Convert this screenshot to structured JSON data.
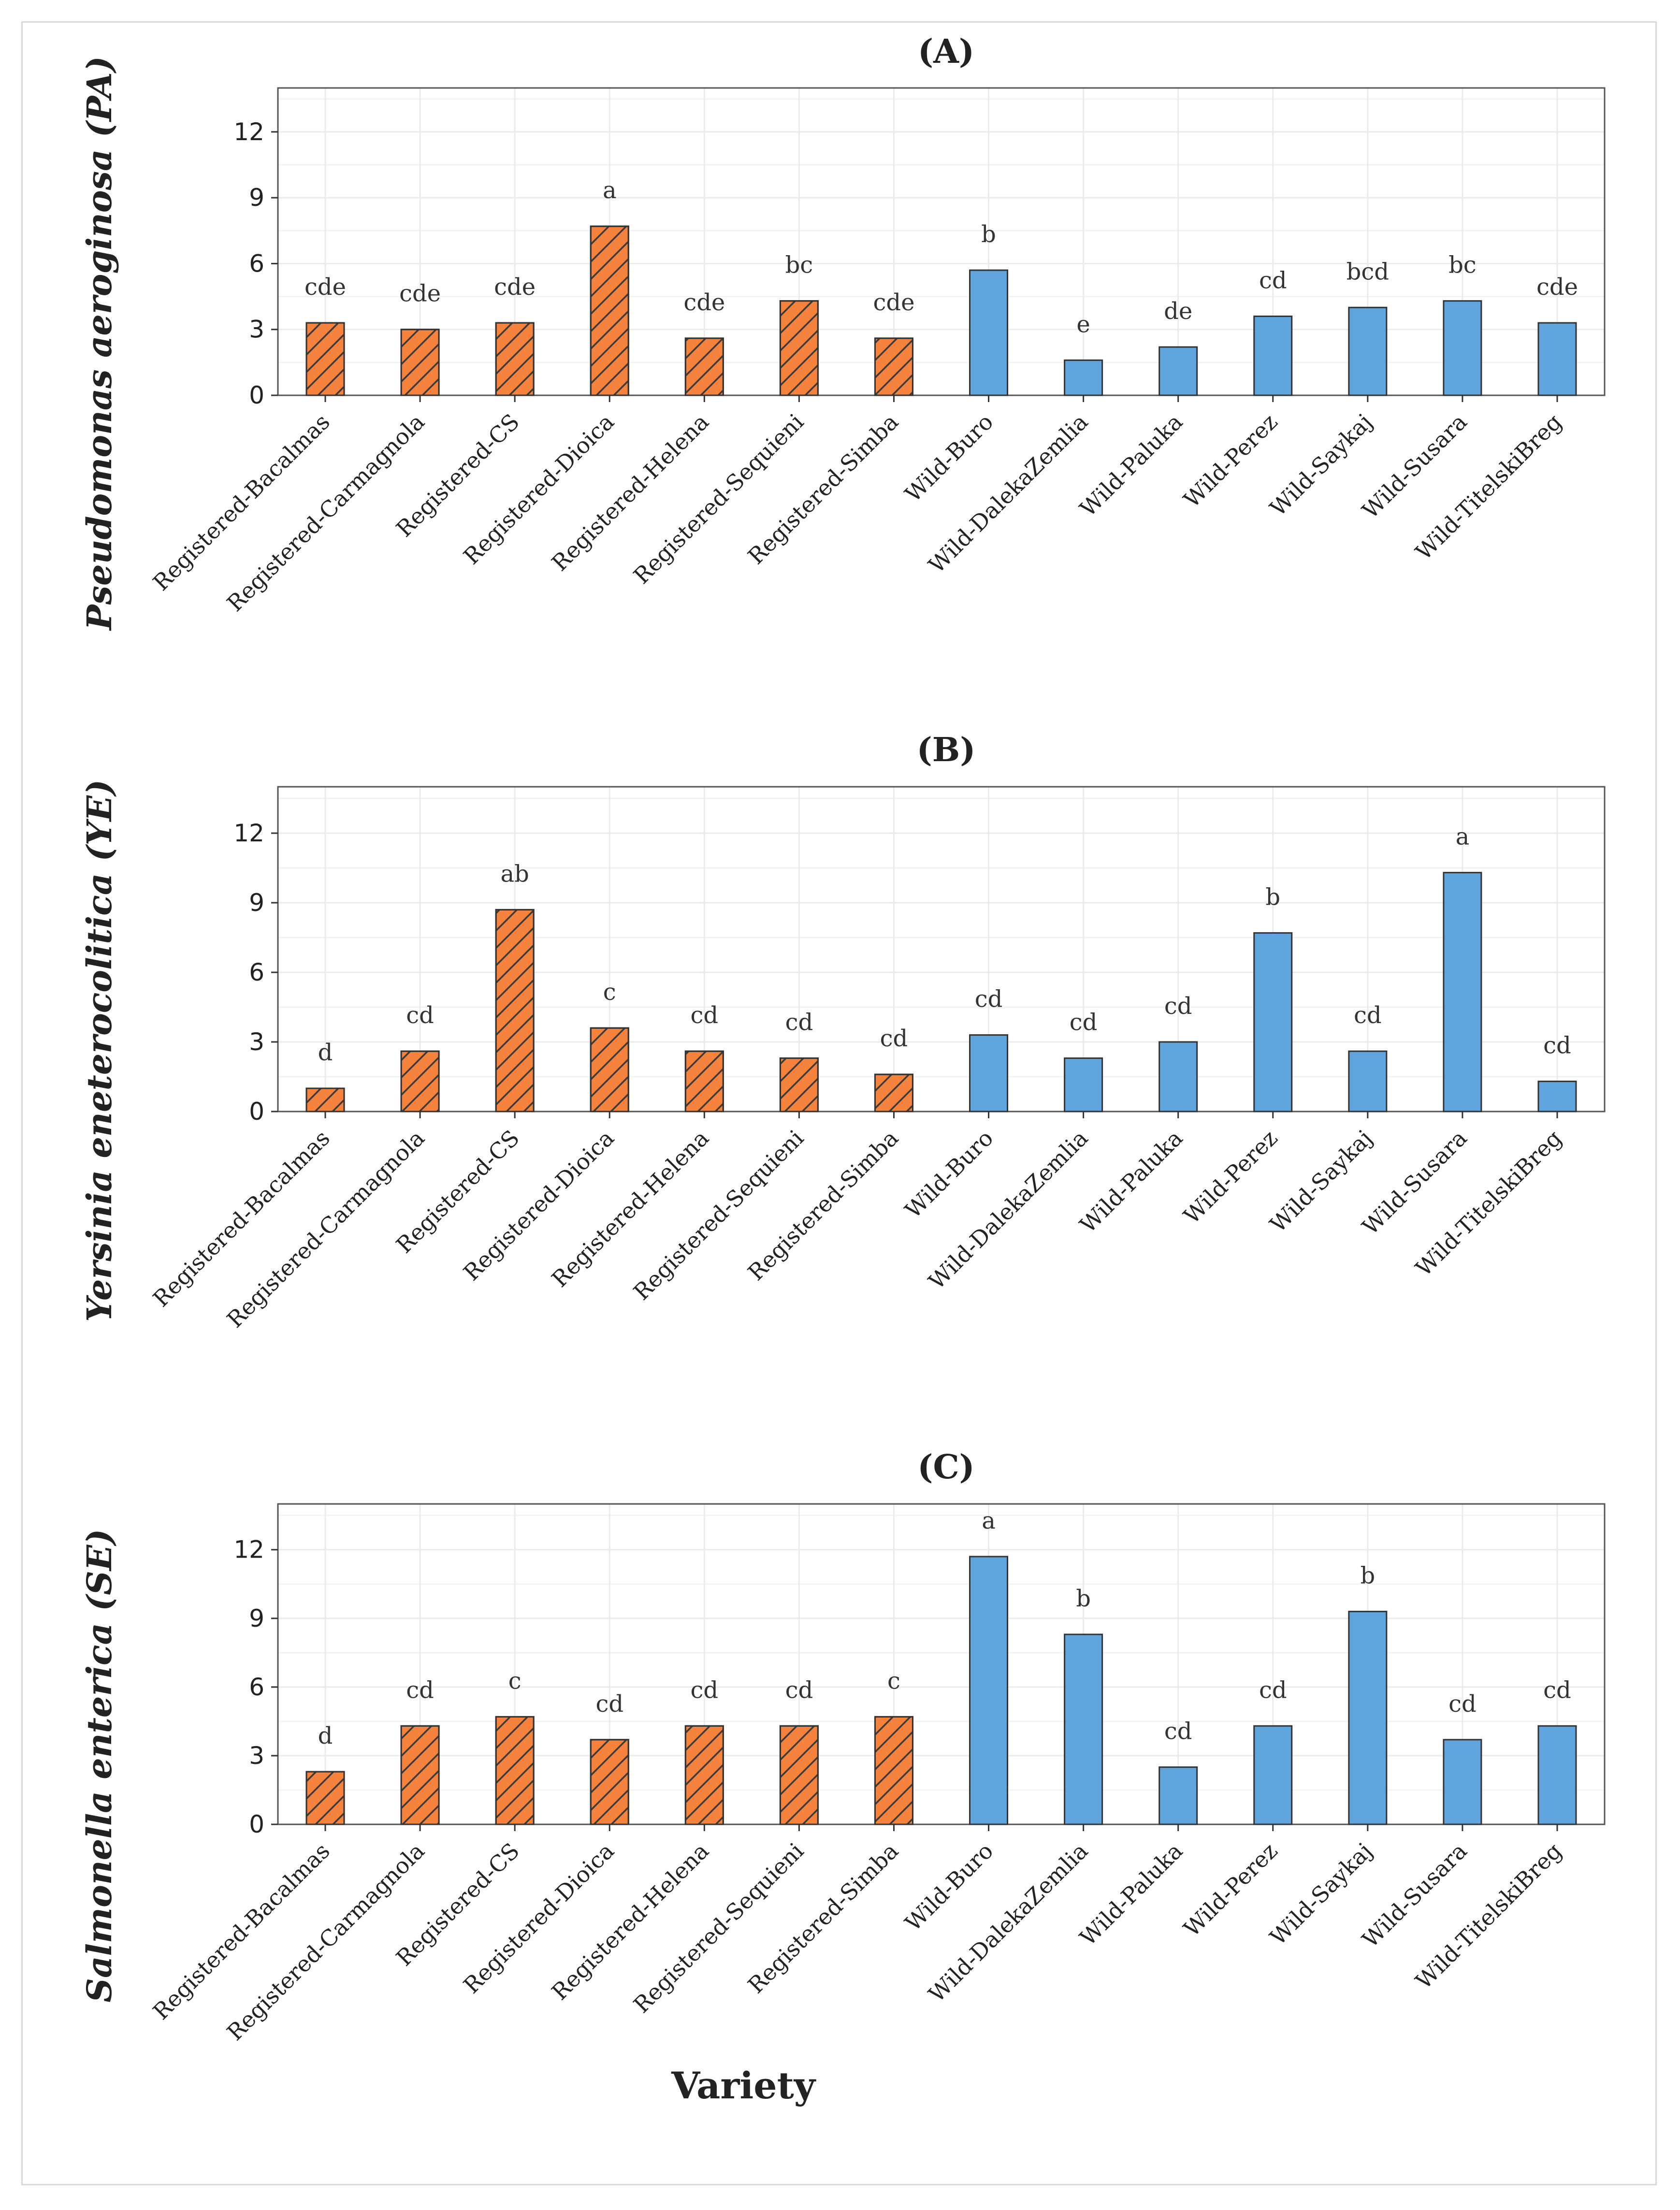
{
  "xlabel": "Variety",
  "colors": {
    "registered": "#F5833D",
    "wild": "#5FA4DD",
    "hatch": "#3a3a3a"
  },
  "chart_data": [
    {
      "type": "bar",
      "title": "(A)",
      "ylabel": "Pseudomonas aeroginosa (PA)",
      "xlabel": "Variety",
      "ylim": [
        0,
        14
      ],
      "yticks": [
        0,
        3,
        6,
        9,
        12
      ],
      "grid": true,
      "categories": [
        "Registered-Bacalmas",
        "Registered-Carmagnola",
        "Registered-CS",
        "Registered-Dioica",
        "Registered-Helena",
        "Registered-Sequieni",
        "Registered-Simba",
        "Wild-Buro",
        "Wild-DalekaZemlia",
        "Wild-Paluka",
        "Wild-Perez",
        "Wild-Saykaj",
        "Wild-Susara",
        "Wild-TitelskiBreg"
      ],
      "groups": [
        "registered",
        "registered",
        "registered",
        "registered",
        "registered",
        "registered",
        "registered",
        "wild",
        "wild",
        "wild",
        "wild",
        "wild",
        "wild",
        "wild"
      ],
      "values": [
        3.3,
        3.0,
        3.3,
        7.7,
        2.6,
        4.3,
        2.6,
        5.7,
        1.6,
        2.2,
        3.6,
        4.0,
        4.3,
        3.3
      ],
      "labels": [
        "cde",
        "cde",
        "cde",
        "a",
        "cde",
        "bc",
        "cde",
        "b",
        "e",
        "de",
        "cd",
        "bcd",
        "bc",
        "cde"
      ]
    },
    {
      "type": "bar",
      "title": "(B)",
      "ylabel": "Yersinia eneterocolitica (YE)",
      "xlabel": "Variety",
      "ylim": [
        0,
        14
      ],
      "yticks": [
        0,
        3,
        6,
        9,
        12
      ],
      "grid": true,
      "categories": [
        "Registered-Bacalmas",
        "Registered-Carmagnola",
        "Registered-CS",
        "Registered-Dioica",
        "Registered-Helena",
        "Registered-Sequieni",
        "Registered-Simba",
        "Wild-Buro",
        "Wild-DalekaZemlia",
        "Wild-Paluka",
        "Wild-Perez",
        "Wild-Saykaj",
        "Wild-Susara",
        "Wild-TitelskiBreg"
      ],
      "groups": [
        "registered",
        "registered",
        "registered",
        "registered",
        "registered",
        "registered",
        "registered",
        "wild",
        "wild",
        "wild",
        "wild",
        "wild",
        "wild",
        "wild"
      ],
      "values": [
        1.0,
        2.6,
        8.7,
        3.6,
        2.6,
        2.3,
        1.6,
        3.3,
        2.3,
        3.0,
        7.7,
        2.6,
        10.3,
        1.3
      ],
      "labels": [
        "d",
        "cd",
        "ab",
        "c",
        "cd",
        "cd",
        "cd",
        "cd",
        "cd",
        "cd",
        "b",
        "cd",
        "a",
        "cd"
      ]
    },
    {
      "type": "bar",
      "title": "(C)",
      "ylabel": "Salmonella enterica (SE)",
      "xlabel": "Variety",
      "ylim": [
        0,
        14
      ],
      "yticks": [
        0,
        3,
        6,
        9,
        12
      ],
      "grid": true,
      "categories": [
        "Registered-Bacalmas",
        "Registered-Carmagnola",
        "Registered-CS",
        "Registered-Dioica",
        "Registered-Helena",
        "Registered-Sequieni",
        "Registered-Simba",
        "Wild-Buro",
        "Wild-DalekaZemlia",
        "Wild-Paluka",
        "Wild-Perez",
        "Wild-Saykaj",
        "Wild-Susara",
        "Wild-TitelskiBreg"
      ],
      "groups": [
        "registered",
        "registered",
        "registered",
        "registered",
        "registered",
        "registered",
        "registered",
        "wild",
        "wild",
        "wild",
        "wild",
        "wild",
        "wild",
        "wild"
      ],
      "values": [
        2.3,
        4.3,
        4.7,
        3.7,
        4.3,
        4.3,
        4.7,
        11.7,
        8.3,
        2.5,
        4.3,
        9.3,
        3.7,
        4.3
      ],
      "labels": [
        "d",
        "cd",
        "c",
        "cd",
        "cd",
        "cd",
        "c",
        "a",
        "b",
        "cd",
        "cd",
        "b",
        "cd",
        "cd"
      ]
    }
  ]
}
